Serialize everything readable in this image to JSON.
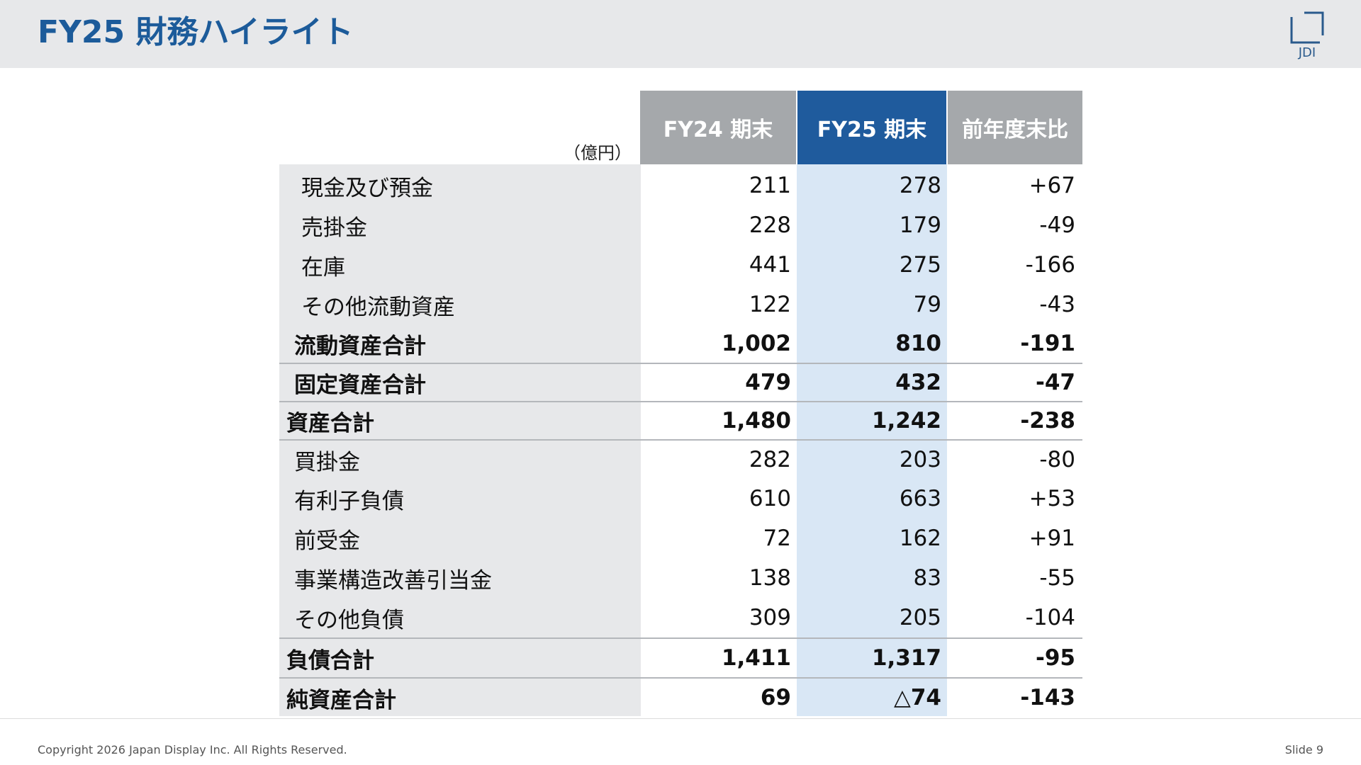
{
  "header": {
    "title": "FY25 財務ハイライト",
    "logo_text": "JDI"
  },
  "table": {
    "unit": "（億円）",
    "columns": [
      "FY24 期末",
      "FY25 期末",
      "前年度末比"
    ],
    "column_colors": [
      "#a5a8ab",
      "#1f5b9d",
      "#a5a8ab"
    ],
    "rows": [
      {
        "label": "現金及び預金",
        "fy24": "211",
        "fy25": "278",
        "diff": "+67",
        "bold": false,
        "indent": 2,
        "rule": false
      },
      {
        "label": "売掛金",
        "fy24": "228",
        "fy25": "179",
        "diff": "-49",
        "bold": false,
        "indent": 2,
        "rule": false
      },
      {
        "label": "在庫",
        "fy24": "441",
        "fy25": "275",
        "diff": "-166",
        "bold": false,
        "indent": 2,
        "rule": false
      },
      {
        "label": "その他流動資産",
        "fy24": "122",
        "fy25": "79",
        "diff": "-43",
        "bold": false,
        "indent": 2,
        "rule": false
      },
      {
        "label": "流動資産合計",
        "fy24": "1,002",
        "fy25": "810",
        "diff": "-191",
        "bold": true,
        "indent": 1,
        "rule": false
      },
      {
        "label": "固定資産合計",
        "fy24": "479",
        "fy25": "432",
        "diff": "-47",
        "bold": true,
        "indent": 1,
        "rule": true
      },
      {
        "label": "資産合計",
        "fy24": "1,480",
        "fy25": "1,242",
        "diff": "-238",
        "bold": true,
        "indent": 0,
        "rule": true
      },
      {
        "label": "買掛金",
        "fy24": "282",
        "fy25": "203",
        "diff": "-80",
        "bold": false,
        "indent": 1,
        "rule": true
      },
      {
        "label": "有利子負債",
        "fy24": "610",
        "fy25": "663",
        "diff": "+53",
        "bold": false,
        "indent": 1,
        "rule": false
      },
      {
        "label": "前受金",
        "fy24": "72",
        "fy25": "162",
        "diff": "+91",
        "bold": false,
        "indent": 1,
        "rule": false
      },
      {
        "label": "事業構造改善引当金",
        "fy24": "138",
        "fy25": "83",
        "diff": "-55",
        "bold": false,
        "indent": 1,
        "rule": false
      },
      {
        "label": "その他負債",
        "fy24": "309",
        "fy25": "205",
        "diff": "-104",
        "bold": false,
        "indent": 1,
        "rule": false
      },
      {
        "label": "負債合計",
        "fy24": "1,411",
        "fy25": "1,317",
        "diff": "-95",
        "bold": true,
        "indent": 0,
        "rule": true
      },
      {
        "label": "純資産合計",
        "fy24": "69",
        "fy25": "△74",
        "diff": "-143",
        "bold": true,
        "indent": 0,
        "rule": true
      }
    ]
  },
  "footer": {
    "copyright": "Copyright 2026 Japan Display Inc. All Rights Reserved.",
    "slide": "Slide 9"
  }
}
